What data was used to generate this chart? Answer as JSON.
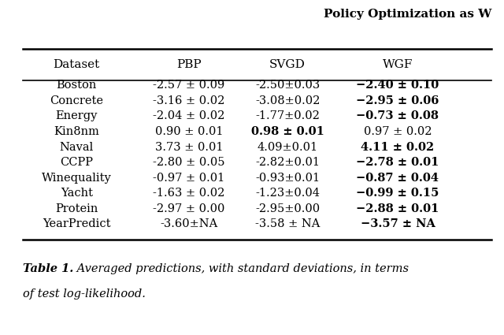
{
  "title_right": "Policy Optimization as W",
  "header": [
    "Dataset",
    "PBP",
    "SVGD",
    "WGF"
  ],
  "rows": [
    [
      "Boston",
      "-2.57 ± 0.09",
      "-2.50±0.03",
      "−2.40 ± 0.10"
    ],
    [
      "Concrete",
      "-3.16 ± 0.02",
      "-3.08±0.02",
      "−2.95 ± 0.06"
    ],
    [
      "Energy",
      "-2.04 ± 0.02",
      "-1.77±0.02",
      "−0.73 ± 0.08"
    ],
    [
      "Kin8nm",
      "0.90 ± 0.01",
      "0.98 ± 0.01",
      "0.97 ± 0.02"
    ],
    [
      "Naval",
      "3.73 ± 0.01",
      "4.09±0.01",
      "4.11 ± 0.02"
    ],
    [
      "CCPP",
      "-2.80 ± 0.05",
      "-2.82±0.01",
      "−2.78 ± 0.01"
    ],
    [
      "Winequality",
      "-0.97 ± 0.01",
      "-0.93±0.01",
      "−0.87 ± 0.04"
    ],
    [
      "Yacht",
      "-1.63 ± 0.02",
      "-1.23±0.04",
      "−0.99 ± 0.15"
    ],
    [
      "Protein",
      "-2.97 ± 0.00",
      "-2.95±0.00",
      "−2.88 ± 0.01"
    ],
    [
      "YearPredict",
      "-3.60±NA",
      "-3.58 ± NA",
      "−3.57 ± NA"
    ]
  ],
  "bold_cells": {
    "0": [
      3
    ],
    "1": [
      3
    ],
    "2": [
      3
    ],
    "3": [
      2
    ],
    "4": [
      3
    ],
    "5": [
      3
    ],
    "6": [
      3
    ],
    "7": [
      3
    ],
    "8": [
      3
    ],
    "9": [
      3
    ]
  },
  "caption_bold": "Table 1.",
  "caption_normal": " Averaged predictions, with standard deviations, in terms",
  "caption2": "of test log-likelihood.",
  "bg_color": "#ffffff",
  "font_size": 10.5,
  "header_font_size": 11,
  "title_font_size": 11,
  "caption_font_size": 10.5
}
